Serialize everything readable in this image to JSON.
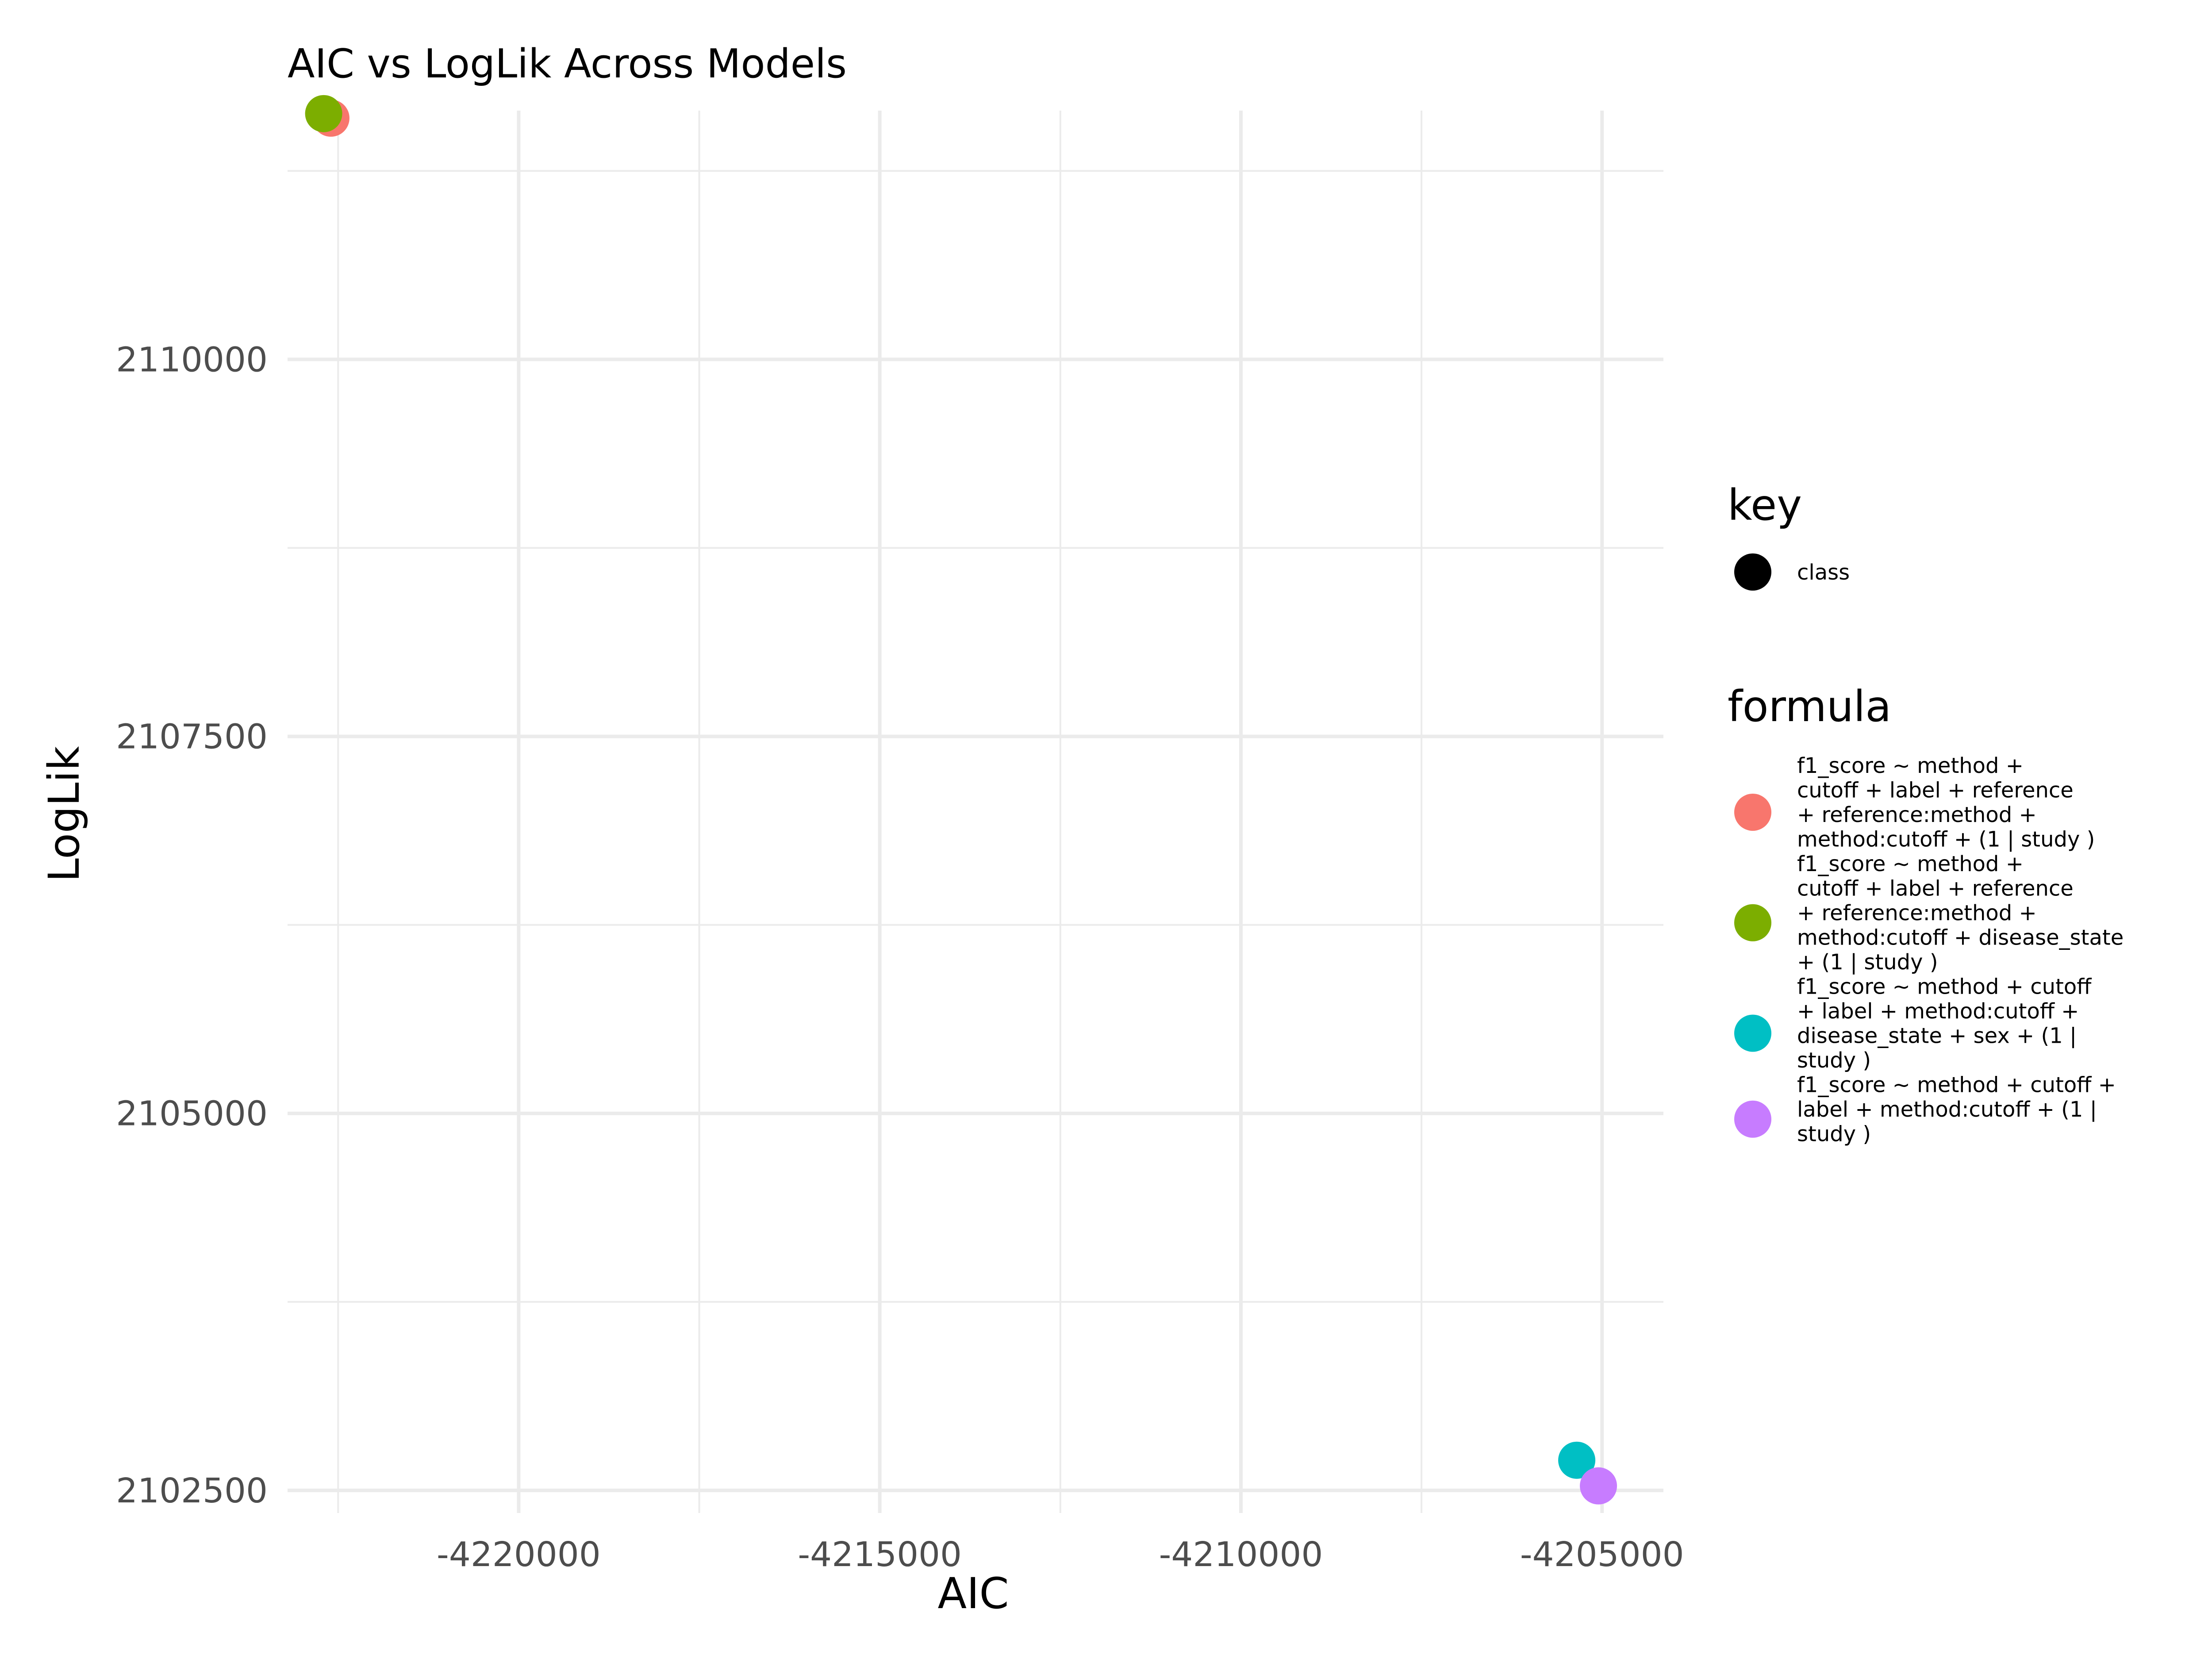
{
  "chart_data": {
    "type": "scatter",
    "title": "AIC vs LogLik Across Models",
    "xlabel": "AIC",
    "ylabel": "LogLik",
    "xlim": [
      -4223200,
      -4204150
    ],
    "ylim": [
      2102350,
      2111650
    ],
    "x_ticks": [
      -4220000,
      -4215000,
      -4210000,
      -4205000
    ],
    "x_tick_labels": [
      "-4220000",
      "-4215000",
      "-4210000",
      "-4205000"
    ],
    "y_ticks": [
      2102500,
      2105000,
      2107500,
      2110000
    ],
    "y_tick_labels": [
      "2102500",
      "2105000",
      "2107500",
      "2110000"
    ],
    "grid": true,
    "legend_position": "right",
    "key_legend": {
      "title": "key",
      "items": [
        {
          "label": "class",
          "color": "#000000"
        }
      ]
    },
    "formula_legend_title": "formula",
    "series": [
      {
        "name": "f1_score ~ method + cutoff + label + reference + reference:method + method:cutoff + (1 | study )",
        "legend_lines": [
          "f1_score ~ method +",
          "cutoff + label + reference",
          "+ reference:method +",
          "method:cutoff + (1 | study )"
        ],
        "color": "#F8766D",
        "points": [
          {
            "x": -4222600,
            "y": 2111600
          }
        ]
      },
      {
        "name": "f1_score ~ method + cutoff + label + reference + reference:method + method:cutoff + disease_state + (1 | study )",
        "legend_lines": [
          "f1_score ~ method +",
          "cutoff + label + reference",
          "+ reference:method +",
          "method:cutoff + disease_state",
          "+ (1 | study )"
        ],
        "color": "#7CAE00",
        "points": [
          {
            "x": -4222700,
            "y": 2111630
          }
        ]
      },
      {
        "name": "f1_score ~ method + cutoff + label + method:cutoff + disease_state + sex + (1 | study )",
        "legend_lines": [
          "f1_score ~ method + cutoff",
          "+ label + method:cutoff +",
          "disease_state + sex + (1 |",
          "study )"
        ],
        "color": "#00BFC4",
        "points": [
          {
            "x": -4205350,
            "y": 2102700
          }
        ]
      },
      {
        "name": "f1_score ~ method + cutoff + label + method:cutoff + (1 | study )",
        "legend_lines": [
          "f1_score ~ method + cutoff +",
          "label + method:cutoff + (1 |",
          "study )"
        ],
        "color": "#C77CFF",
        "points": [
          {
            "x": -4205050,
            "y": 2102530
          }
        ]
      }
    ]
  }
}
